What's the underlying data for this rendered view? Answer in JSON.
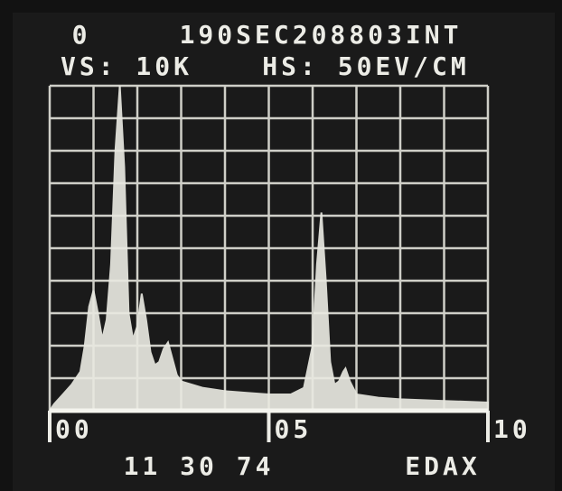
{
  "chart_data": {
    "type": "area",
    "counter": "0",
    "title": "190SEC208803INT",
    "vertical_scale": "VS: 10K",
    "horizontal_scale": "HS: 50EV/CM",
    "date": "11 30 74",
    "brand": "EDAX",
    "x": [
      0,
      0.1,
      0.3,
      0.5,
      0.7,
      0.8,
      0.9,
      1.0,
      1.1,
      1.2,
      1.3,
      1.4,
      1.5,
      1.6,
      1.7,
      1.8,
      1.9,
      2.0,
      2.1,
      2.2,
      2.3,
      2.4,
      2.5,
      2.6,
      2.7,
      2.8,
      2.9,
      3.0,
      3.5,
      4.0,
      4.5,
      5.0,
      5.5,
      5.8,
      6.0,
      6.1,
      6.2,
      6.3,
      6.4,
      6.5,
      6.6,
      6.7,
      6.75,
      6.85,
      7.0,
      7.5,
      8.0,
      9.0,
      10.0
    ],
    "values": [
      0,
      0.2,
      0.5,
      0.8,
      1.2,
      2.0,
      3.2,
      3.7,
      3.0,
      2.2,
      2.8,
      4.5,
      8.0,
      10,
      7.5,
      3.0,
      2.2,
      2.6,
      3.6,
      2.8,
      1.8,
      1.4,
      1.5,
      1.9,
      2.1,
      1.6,
      1.1,
      0.9,
      0.7,
      0.6,
      0.55,
      0.5,
      0.5,
      0.7,
      2.0,
      4.5,
      6.1,
      4.0,
      1.5,
      0.8,
      0.9,
      1.2,
      1.3,
      0.9,
      0.5,
      0.4,
      0.35,
      0.3,
      0.25
    ],
    "color": "#e8e8e0",
    "xlim": [
      0,
      10
    ],
    "ylim": [
      0,
      10
    ],
    "xticks": [
      {
        "value": 0,
        "label": "00"
      },
      {
        "value": 5,
        "label": "05"
      },
      {
        "value": 10,
        "label": "10"
      }
    ],
    "grid": true
  }
}
